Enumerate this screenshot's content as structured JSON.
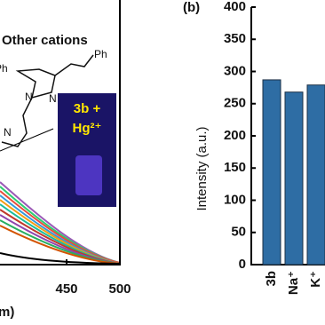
{
  "chart_data": [
    {
      "type": "line",
      "annotations": [
        "Other cations",
        "Ph",
        "Ph",
        "N",
        "N",
        "N",
        "3b +",
        "Hg²⁺"
      ],
      "x_label": "m)",
      "xlim": [
        387.5,
        500
      ],
      "xticks": [
        450,
        500
      ]
    },
    {
      "type": "bar",
      "panel_label": "(b)",
      "y_label": "Intensity (a.u.)",
      "categories": [
        "3b",
        "Na⁺",
        "K⁺"
      ],
      "values": [
        287,
        268,
        279
      ],
      "color": "#2e6da4",
      "ylim": [
        0,
        400
      ],
      "yticks": [
        0,
        50,
        100,
        150,
        200,
        250,
        300,
        350,
        400
      ]
    }
  ]
}
